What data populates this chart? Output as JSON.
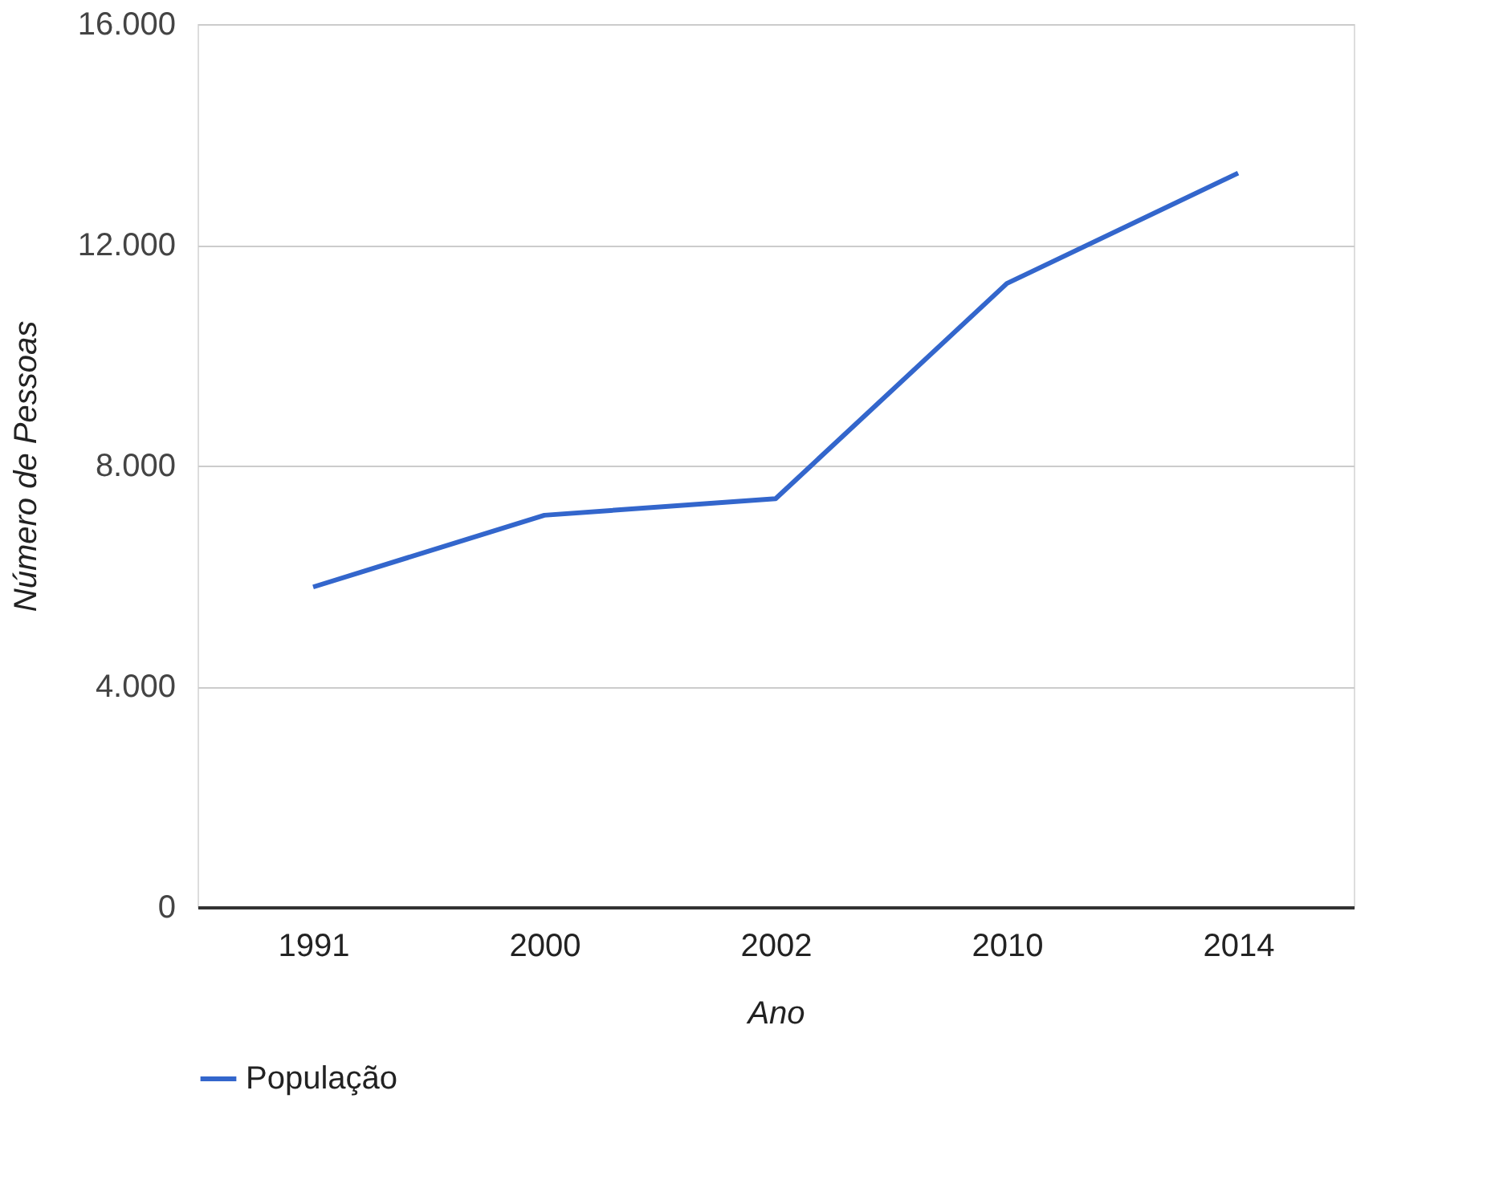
{
  "chart_data": {
    "type": "line",
    "xlabel": "Ano",
    "ylabel": "Número de Pessoas",
    "categories": [
      "1991",
      "2000",
      "2002",
      "2010",
      "2014"
    ],
    "series": [
      {
        "name": "População",
        "color": "#3366cc",
        "values": [
          5800,
          7100,
          7400,
          11300,
          13300
        ]
      }
    ],
    "ylim": [
      0,
      16000
    ],
    "yticks": [
      0,
      {
        "value": 4000,
        "label": "4.000"
      },
      {
        "value": 8000,
        "label": "8.000"
      },
      {
        "value": 12000,
        "label": "12.000"
      },
      {
        "value": 16000,
        "label": "16.000"
      }
    ],
    "grid": "y",
    "legend": "bottom",
    "marker": "none",
    "line_style": "solid"
  }
}
